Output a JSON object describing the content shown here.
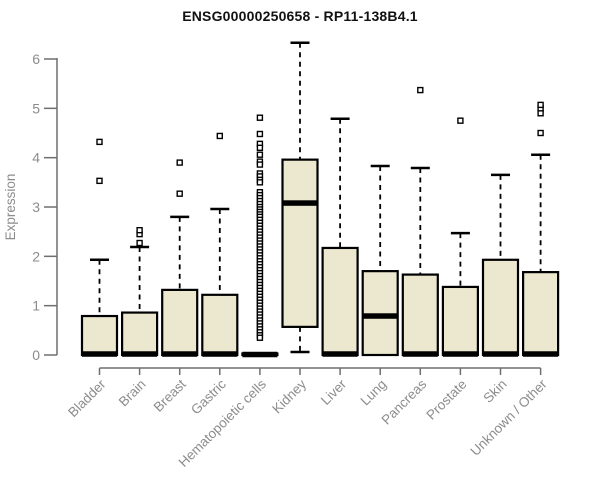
{
  "chart_data": {
    "type": "boxplot",
    "title": "ENSG00000250658 - RP11-138B4.1",
    "ylabel": "Expression",
    "xlabel": "",
    "ylim": [
      0,
      6.5
    ],
    "yticks": [
      0,
      1,
      2,
      3,
      4,
      5,
      6
    ],
    "grid": false,
    "legend": "none",
    "categories": [
      "Bladder",
      "Brain",
      "Breast",
      "Gastric",
      "Hematopoietic cells",
      "Kidney",
      "Liver",
      "Lung",
      "Pancreas",
      "Prostate",
      "Skin",
      "Unknown / Other"
    ],
    "series": [
      {
        "name": "Bladder",
        "q1": 0,
        "median": 0.02,
        "q3": 0.79,
        "whisker_low": 0,
        "whisker_high": 1.93,
        "outliers": [
          3.53,
          4.32
        ]
      },
      {
        "name": "Brain",
        "q1": 0,
        "median": 0.02,
        "q3": 0.86,
        "whisker_low": 0,
        "whisker_high": 2.19,
        "outliers": [
          2.27,
          2.45,
          2.53
        ]
      },
      {
        "name": "Breast",
        "q1": 0,
        "median": 0.02,
        "q3": 1.32,
        "whisker_low": 0,
        "whisker_high": 2.8,
        "outliers": [
          3.27,
          3.9
        ]
      },
      {
        "name": "Gastric",
        "q1": 0,
        "median": 0.02,
        "q3": 1.22,
        "whisker_low": 0,
        "whisker_high": 2.96,
        "outliers": [
          4.44
        ]
      },
      {
        "name": "Hematopoietic cells",
        "q1": 0,
        "median": 0.01,
        "q3": 0.03,
        "whisker_low": 0,
        "whisker_high": 0.04,
        "outliers": [
          4.81,
          4.48,
          4.28,
          4.2,
          4.06,
          3.92,
          3.86,
          3.68,
          3.62,
          3.55,
          3.5,
          3.3,
          3.24,
          3.18,
          3.12,
          3.06,
          3.0,
          2.95,
          2.9,
          2.85,
          2.8,
          2.74,
          2.68,
          2.62,
          2.56,
          2.5,
          2.44,
          2.38,
          2.32,
          2.26,
          2.2,
          2.14,
          2.08,
          2.02,
          1.96,
          1.9,
          1.84,
          1.78,
          1.72,
          1.66,
          1.6,
          1.54,
          1.48,
          1.42,
          1.36,
          1.3,
          1.24,
          1.18,
          1.12,
          1.06,
          1.0,
          0.94,
          0.88,
          0.82,
          0.76,
          0.7,
          0.64,
          0.58,
          0.52,
          0.46,
          0.4,
          0.35
        ]
      },
      {
        "name": "Kidney",
        "q1": 0.57,
        "median": 3.08,
        "q3": 3.96,
        "whisker_low": 0.06,
        "whisker_high": 6.33,
        "outliers": []
      },
      {
        "name": "Liver",
        "q1": 0,
        "median": 0.02,
        "q3": 2.17,
        "whisker_low": 0,
        "whisker_high": 4.79,
        "outliers": []
      },
      {
        "name": "Lung",
        "q1": 0,
        "median": 0.79,
        "q3": 1.7,
        "whisker_low": 0,
        "whisker_high": 3.83,
        "outliers": []
      },
      {
        "name": "Pancreas",
        "q1": 0,
        "median": 0.02,
        "q3": 1.63,
        "whisker_low": 0,
        "whisker_high": 3.79,
        "outliers": [
          5.37
        ]
      },
      {
        "name": "Prostate",
        "q1": 0,
        "median": 0.02,
        "q3": 1.38,
        "whisker_low": 0,
        "whisker_high": 2.47,
        "outliers": [
          4.75
        ]
      },
      {
        "name": "Skin",
        "q1": 0,
        "median": 0.02,
        "q3": 1.93,
        "whisker_low": 0,
        "whisker_high": 3.65,
        "outliers": []
      },
      {
        "name": "Unknown / Other",
        "q1": 0,
        "median": 0.02,
        "q3": 1.68,
        "whisker_low": 0,
        "whisker_high": 4.06,
        "outliers": [
          4.5,
          4.9,
          5.0,
          5.07
        ]
      }
    ],
    "colors": {
      "box_fill": "#ece7cf",
      "box_stroke": "#000000",
      "median": "#000000",
      "whisker": "#000000",
      "outlier_fill": "#ffffff",
      "axis": "#6f6f6f",
      "labels": "#8c8c8c",
      "title": "#111111",
      "background": "#ffffff"
    }
  }
}
